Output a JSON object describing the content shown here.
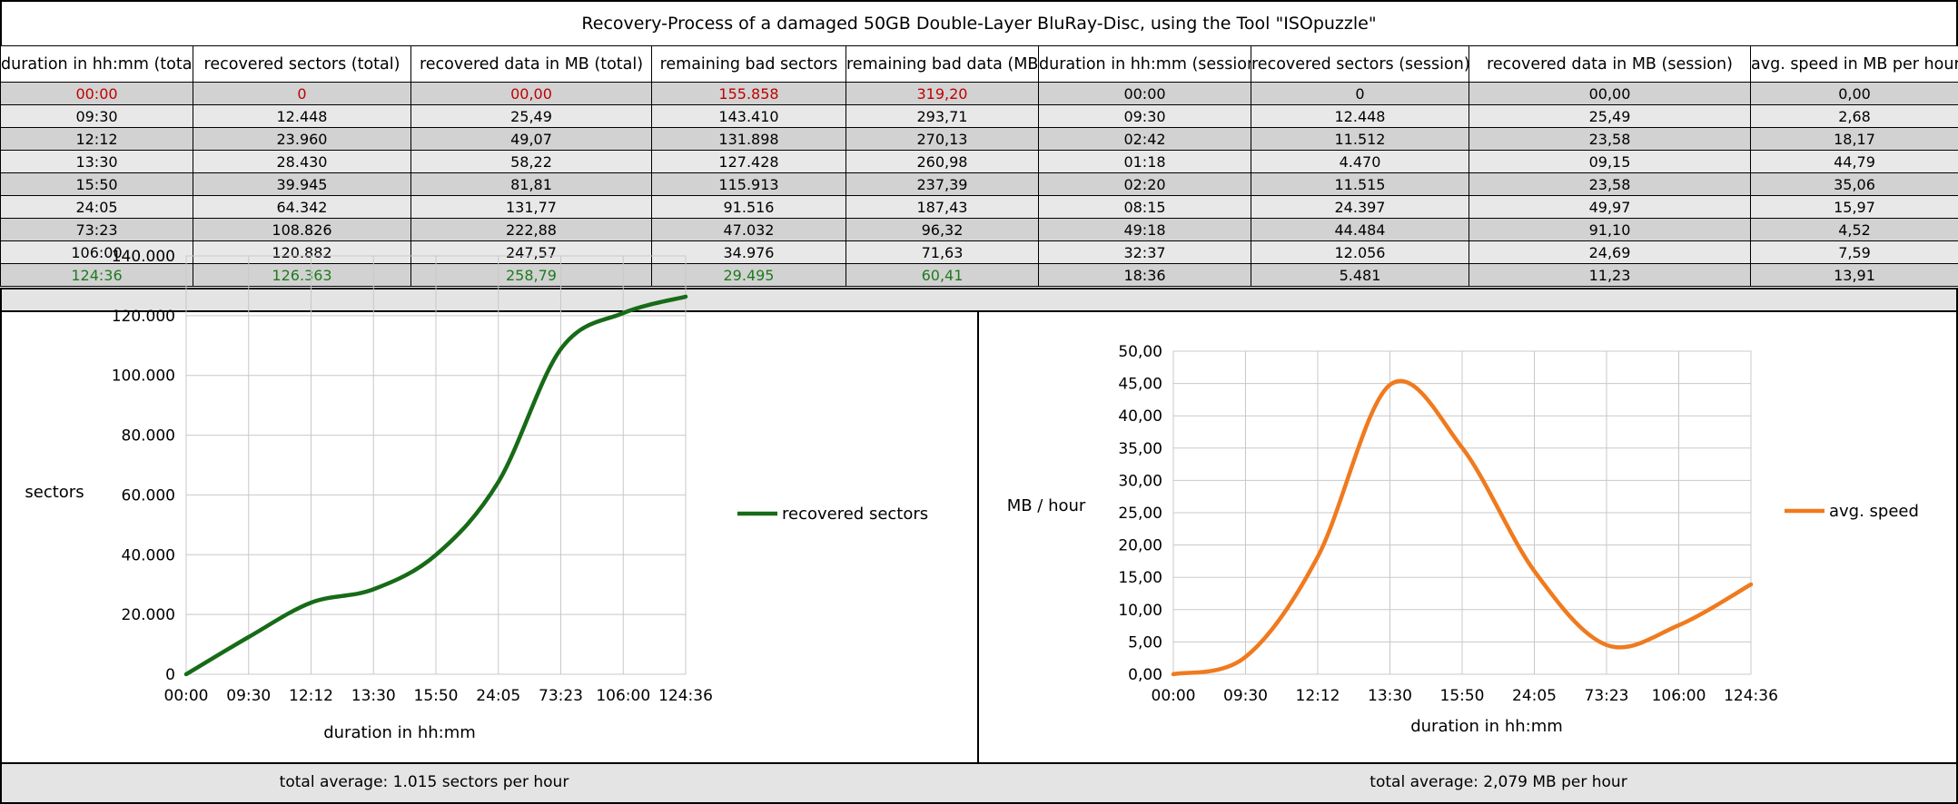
{
  "title": "Recovery-Process of a damaged 50GB Double-Layer BluRay-Disc, using the Tool \"ISOpuzzle\"",
  "table": {
    "headers": [
      "duration in hh:mm (total)",
      "recovered sectors (total)",
      "recovered data in MB (total)",
      "remaining bad sectors",
      "remaining bad data (MB)",
      "duration in hh:mm (session)",
      "recovered sectors (session)",
      "recovered data in MB (session)",
      "avg. speed in MB per hour"
    ],
    "rows": [
      [
        "00:00",
        "0",
        "00,00",
        "155.858",
        "319,20",
        "00:00",
        "0",
        "00,00",
        "0,00"
      ],
      [
        "09:30",
        "12.448",
        "25,49",
        "143.410",
        "293,71",
        "09:30",
        "12.448",
        "25,49",
        "2,68"
      ],
      [
        "12:12",
        "23.960",
        "49,07",
        "131.898",
        "270,13",
        "02:42",
        "11.512",
        "23,58",
        "18,17"
      ],
      [
        "13:30",
        "28.430",
        "58,22",
        "127.428",
        "260,98",
        "01:18",
        "4.470",
        "09,15",
        "44,79"
      ],
      [
        "15:50",
        "39.945",
        "81,81",
        "115.913",
        "237,39",
        "02:20",
        "11.515",
        "23,58",
        "35,06"
      ],
      [
        "24:05",
        "64.342",
        "131,77",
        "91.516",
        "187,43",
        "08:15",
        "24.397",
        "49,97",
        "15,97"
      ],
      [
        "73:23",
        "108.826",
        "222,88",
        "47.032",
        "96,32",
        "49:18",
        "44.484",
        "91,10",
        "4,52"
      ],
      [
        "106:00",
        "120.882",
        "247,57",
        "34.976",
        "71,63",
        "32:37",
        "12.056",
        "24,69",
        "7,59"
      ],
      [
        "124:36",
        "126.363",
        "258,79",
        "29.495",
        "60,41",
        "18:36",
        "5.481",
        "11,23",
        "13,91"
      ]
    ]
  },
  "colors": {
    "sectors_line": "#176b17",
    "speed_line": "#f07a1e",
    "first_row_text": "#c00000",
    "last_row_text": "#1e7a1e"
  },
  "chart_data": [
    {
      "type": "line",
      "categories": [
        "00:00",
        "09:30",
        "12:12",
        "13:30",
        "15:50",
        "24:05",
        "73:23",
        "106:00",
        "124:36"
      ],
      "series": [
        {
          "name": "recovered sectors",
          "values": [
            0,
            12448,
            23960,
            28430,
            39945,
            64342,
            108826,
            120882,
            126363
          ]
        }
      ],
      "title": "",
      "xlabel": "duration in hh:mm",
      "ylabel": "sectors",
      "ylim": [
        0,
        140000
      ],
      "yticks": [
        "0",
        "20.000",
        "40.000",
        "60.000",
        "80.000",
        "100.000",
        "120.000",
        "140.000"
      ],
      "grid": true,
      "legend": "right",
      "smooth": true
    },
    {
      "type": "line",
      "categories": [
        "00:00",
        "09:30",
        "12:12",
        "13:30",
        "15:50",
        "24:05",
        "73:23",
        "106:00",
        "124:36"
      ],
      "series": [
        {
          "name": "avg. speed",
          "values": [
            0,
            2.68,
            18.17,
            44.79,
            35.06,
            15.97,
            4.52,
            7.59,
            13.91
          ]
        }
      ],
      "title": "",
      "xlabel": "duration in hh:mm",
      "ylabel": "MB / hour",
      "ylim": [
        0,
        50
      ],
      "yticks": [
        "0,00",
        "5,00",
        "10,00",
        "15,00",
        "20,00",
        "25,00",
        "30,00",
        "35,00",
        "40,00",
        "45,00",
        "50,00"
      ],
      "grid": true,
      "legend": "right",
      "smooth": true
    }
  ],
  "footer": {
    "left": "total average: 1.015 sectors per hour",
    "right": "total average: 2,079 MB per hour"
  }
}
